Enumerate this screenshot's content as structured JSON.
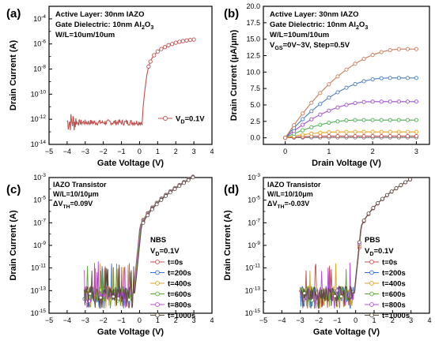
{
  "chart_data": [
    {
      "panel_label": "(a)",
      "type": "line",
      "scale_y": "log",
      "xlabel": "Gate Voltage (V)",
      "ylabel": "Drain Current (A)",
      "xlim": [
        -5,
        4
      ],
      "ylim_exp": [
        -14,
        -3
      ],
      "x_ticks": [
        "-5",
        "-4",
        "-3",
        "-2",
        "-1",
        "0",
        "1",
        "2",
        "3",
        "4"
      ],
      "y_ticks": [
        "10^-14",
        "10^-12",
        "10^-10",
        "10^-8",
        "10^-6",
        "10^-4"
      ],
      "y_tick_exps": [
        -14,
        -12,
        -10,
        -8,
        -6,
        -4
      ],
      "annotations": [
        "Active Layer: 30nm IAZO",
        "Gate Dielectric: 10nm Al2O3",
        "W/L=10um/10um"
      ],
      "legend": [
        "VD=0.1V"
      ],
      "series": [
        {
          "name": "VD=0.1V",
          "color": "#c0504d",
          "x": [
            -4.0,
            -3.8,
            -3.6,
            -3.4,
            -3.2,
            -3.0,
            -2.8,
            -2.6,
            -2.4,
            -2.2,
            -2.0,
            -1.8,
            -1.6,
            -1.4,
            -1.2,
            -1.0,
            -0.8,
            -0.6,
            -0.4,
            -0.2,
            0.0,
            0.1,
            0.2,
            0.3,
            0.4,
            0.5,
            0.6,
            0.7,
            0.8,
            0.9,
            1.0,
            1.2,
            1.4,
            1.6,
            1.8,
            2.0,
            2.2,
            2.4,
            2.6,
            2.8,
            3.0
          ],
          "log_y": [
            -12.0,
            -12.7,
            -11.6,
            -12.9,
            -11.9,
            -12.4,
            -12.1,
            -12.6,
            -12.2,
            -12.5,
            -12.3,
            -12.2,
            -12.4,
            -12.3,
            -12.2,
            -12.3,
            -12.1,
            -12.3,
            -12.2,
            -12.3,
            -12.2,
            -12.0,
            -11.0,
            -9.6,
            -8.5,
            -7.8,
            -7.4,
            -7.1,
            -6.9,
            -6.75,
            -6.6,
            -6.4,
            -6.25,
            -6.1,
            -6.0,
            -5.9,
            -5.83,
            -5.77,
            -5.72,
            -5.68,
            -5.65
          ]
        }
      ]
    },
    {
      "panel_label": "(b)",
      "type": "line",
      "xlabel": "Drain Voltage (V)",
      "ylabel": "Drain Current (μA/μm)",
      "xlim": [
        -0.5,
        3.3
      ],
      "ylim": [
        -1,
        20
      ],
      "x_ticks": [
        "0",
        "1",
        "2",
        "3"
      ],
      "y_ticks": [
        "0.0",
        "2.5",
        "5.0",
        "7.5",
        "10.0",
        "12.5",
        "15.0",
        "17.5",
        "20.0"
      ],
      "annotations": [
        "Active Layer: 30nm IAZO",
        "Gate Dielectric: 10nm Al2O3",
        "W/L=10um/10um",
        "VGS=0V~3V, Step=0.5V"
      ],
      "series": [
        {
          "color": "#7f7f7f",
          "x": [
            0,
            3
          ],
          "saturation": 0.05
        },
        {
          "color": "#c0504d",
          "x": [
            0,
            3
          ],
          "saturation": 0.25
        },
        {
          "color": "#e6a020",
          "x": [
            0,
            3
          ],
          "saturation": 0.9
        },
        {
          "color": "#4caf50",
          "x": [
            0,
            3
          ],
          "saturation": 2.7
        },
        {
          "color": "#a050c8",
          "x": [
            0,
            3
          ],
          "saturation": 5.5
        },
        {
          "color": "#4a7ec0",
          "x": [
            0,
            3
          ],
          "saturation": 9.1
        },
        {
          "color": "#c97d5a",
          "x": [
            0,
            3
          ],
          "saturation": 13.5
        }
      ]
    },
    {
      "panel_label": "(c)",
      "type": "line",
      "scale_y": "log",
      "xlabel": "Gate Voltage (V)",
      "ylabel": "Drain Current (A)",
      "xlim": [
        -5,
        4
      ],
      "ylim_exp": [
        -15,
        -3
      ],
      "x_ticks": [
        "-5",
        "-4",
        "-3",
        "-2",
        "-1",
        "0",
        "1",
        "2",
        "3",
        "4"
      ],
      "y_ticks": [
        "10^-15",
        "10^-13",
        "10^-11",
        "10^-9",
        "10^-7",
        "10^-5",
        "10^-3"
      ],
      "y_tick_exps": [
        -15,
        -13,
        -11,
        -9,
        -7,
        -5,
        -3
      ],
      "annotations": [
        "IAZO Transistor",
        "W/L=10/10μm",
        "ΔVTH=0.09V"
      ],
      "legend_title": [
        "NBS",
        "VD=0.1V"
      ],
      "series": [
        {
          "name": "t=0s",
          "color": "#c0504d",
          "vth": -0.35
        },
        {
          "name": "t=200s",
          "color": "#2f6fd6",
          "vth": -0.33
        },
        {
          "name": "t=400s",
          "color": "#d9a321",
          "vth": -0.31
        },
        {
          "name": "t=600s",
          "color": "#59a832",
          "vth": -0.29
        },
        {
          "name": "t=800s",
          "color": "#b44fd0",
          "vth": -0.28
        },
        {
          "name": "t=1000s",
          "color": "#5a4a3a",
          "vth": -0.26
        }
      ]
    },
    {
      "panel_label": "(d)",
      "type": "line",
      "scale_y": "log",
      "xlabel": "Gate Voltage (V)",
      "ylabel": "Drain Current (A)",
      "xlim": [
        -5,
        4
      ],
      "ylim_exp": [
        -15,
        -3
      ],
      "x_ticks": [
        "-5",
        "-4",
        "-3",
        "-2",
        "-1",
        "0",
        "1",
        "2",
        "3",
        "4"
      ],
      "y_ticks": [
        "10^-15",
        "10^-13",
        "10^-11",
        "10^-9",
        "10^-7",
        "10^-5",
        "10^-3"
      ],
      "y_tick_exps": [
        -15,
        -13,
        -11,
        -9,
        -7,
        -5,
        -3
      ],
      "annotations": [
        "IAZO Transistor",
        "W/L=10/10μm",
        "ΔVTH=-0.03V"
      ],
      "legend_title": [
        "PBS",
        "VD=0.1V"
      ],
      "series": [
        {
          "name": "t=0s",
          "color": "#c0504d",
          "vth": -0.05
        },
        {
          "name": "t=200s",
          "color": "#2f6fd6",
          "vth": -0.06
        },
        {
          "name": "t=400s",
          "color": "#d9a321",
          "vth": -0.06
        },
        {
          "name": "t=600s",
          "color": "#59a832",
          "vth": -0.07
        },
        {
          "name": "t=800s",
          "color": "#b44fd0",
          "vth": -0.07
        },
        {
          "name": "t=1000s",
          "color": "#5a4a3a",
          "vth": -0.08
        }
      ]
    }
  ]
}
